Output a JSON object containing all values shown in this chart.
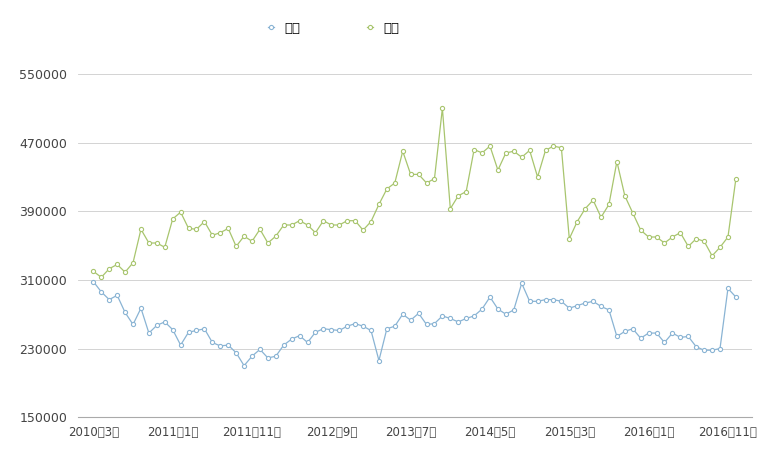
{
  "export_label": "輸出",
  "import_label": "輸入",
  "export_color": "#8ab4d4",
  "import_color": "#a8c56e",
  "ylim": [
    150000,
    570000
  ],
  "yticks": [
    150000,
    230000,
    310000,
    390000,
    470000,
    550000
  ],
  "xtick_labels": [
    "2010年3月",
    "2011年1月",
    "2011年11月",
    "2012年9月",
    "2013年7月",
    "2014年5月",
    "2015年3月",
    "2016年1月",
    "2016年11月"
  ],
  "xtick_positions": [
    0,
    10,
    20,
    30,
    40,
    50,
    60,
    70,
    80
  ],
  "export_values": [
    308000,
    296000,
    287000,
    292000,
    272000,
    258000,
    277000,
    248000,
    257000,
    261000,
    252000,
    234000,
    249000,
    251000,
    253000,
    237000,
    233000,
    234000,
    225000,
    210000,
    221000,
    229000,
    219000,
    221000,
    234000,
    241000,
    245000,
    237000,
    249000,
    253000,
    252000,
    251000,
    256000,
    259000,
    256000,
    251000,
    216000,
    253000,
    256000,
    270000,
    263000,
    271000,
    258000,
    259000,
    268000,
    265000,
    261000,
    265000,
    268000,
    276000,
    290000,
    276000,
    270000,
    275000,
    306000,
    285000,
    285000,
    287000,
    287000,
    285000,
    277000,
    280000,
    283000,
    285000,
    279000,
    275000,
    244000,
    250000,
    253000,
    242000,
    248000,
    248000,
    237000,
    248000,
    243000,
    244000,
    232000,
    228000,
    228000,
    230000,
    300000,
    290000
  ],
  "import_values": [
    320000,
    313000,
    323000,
    328000,
    319000,
    330000,
    369000,
    353000,
    353000,
    348000,
    381000,
    389000,
    370000,
    369000,
    378000,
    362000,
    365000,
    370000,
    349000,
    361000,
    355000,
    369000,
    353000,
    361000,
    374000,
    374000,
    379000,
    374000,
    365000,
    379000,
    374000,
    374000,
    379000,
    379000,
    368000,
    378000,
    398000,
    416000,
    423000,
    460000,
    433000,
    433000,
    423000,
    428000,
    510000,
    393000,
    408000,
    413000,
    462000,
    458000,
    466000,
    438000,
    458000,
    460000,
    453000,
    461000,
    430000,
    461000,
    466000,
    464000,
    358000,
    378000,
    393000,
    403000,
    383000,
    398000,
    448000,
    408000,
    388000,
    368000,
    360000,
    360000,
    353000,
    360000,
    365000,
    349000,
    358000,
    355000,
    338000,
    348000,
    360000,
    428000
  ]
}
